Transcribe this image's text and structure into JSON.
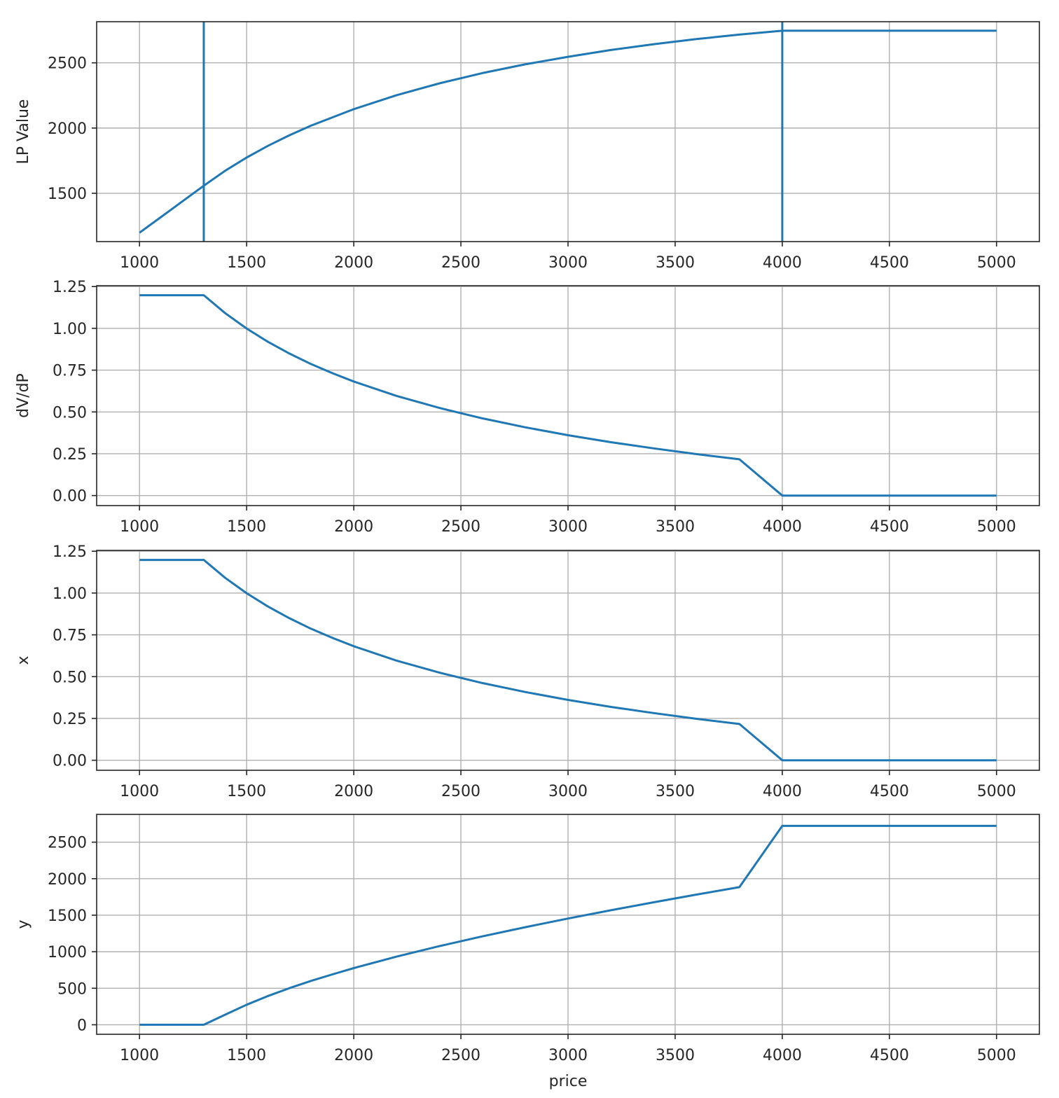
{
  "chart_data": [
    {
      "type": "line",
      "title": "",
      "xlabel": "",
      "ylabel": "LP Value",
      "xlim": [
        800,
        5200
      ],
      "ylim": [
        1130,
        2815
      ],
      "x_ticks": [
        1000,
        1500,
        2000,
        2500,
        3000,
        3500,
        4000,
        4500,
        5000
      ],
      "y_ticks": [
        1500,
        2000,
        2500
      ],
      "grid": true,
      "vlines": [
        1300,
        4000
      ],
      "series": [
        {
          "color": "#1f77b4",
          "x": [
            1000,
            1100,
            1200,
            1300,
            1400,
            1500,
            1600,
            1700,
            1800,
            2000,
            2200,
            2400,
            2600,
            2800,
            3000,
            3200,
            3400,
            3600,
            3800,
            4000,
            4500,
            5000
          ],
          "y": [
            1198,
            1318,
            1438,
            1558,
            1673,
            1774,
            1864,
            1945,
            2018,
            2145,
            2252,
            2343,
            2421,
            2488,
            2546,
            2598,
            2643,
            2682,
            2716,
            2746,
            2746,
            2746
          ]
        }
      ]
    },
    {
      "type": "line",
      "title": "",
      "xlabel": "",
      "ylabel": "dV/dP",
      "xlim": [
        800,
        5200
      ],
      "ylim": [
        -0.06,
        1.255
      ],
      "x_ticks": [
        1000,
        1500,
        2000,
        2500,
        3000,
        3500,
        4000,
        4500,
        5000
      ],
      "y_ticks": [
        "0.00",
        "0.25",
        "0.50",
        "0.75",
        "1.00",
        "1.25"
      ],
      "grid": true,
      "series": [
        {
          "color": "#1f77b4",
          "x": [
            1000,
            1300,
            1400,
            1500,
            1600,
            1700,
            1800,
            1900,
            2000,
            2200,
            2400,
            2600,
            2800,
            3000,
            3200,
            3400,
            3600,
            3800,
            4000,
            4500,
            5000
          ],
          "y": [
            1.198,
            1.198,
            1.091,
            0.999,
            0.919,
            0.849,
            0.787,
            0.732,
            0.682,
            0.596,
            0.524,
            0.462,
            0.408,
            0.361,
            0.319,
            0.282,
            0.248,
            0.217,
            0.0,
            0.0,
            0.0
          ]
        }
      ]
    },
    {
      "type": "line",
      "title": "",
      "xlabel": "",
      "ylabel": "x",
      "xlim": [
        800,
        5200
      ],
      "ylim": [
        -0.06,
        1.255
      ],
      "x_ticks": [
        1000,
        1500,
        2000,
        2500,
        3000,
        3500,
        4000,
        4500,
        5000
      ],
      "y_ticks": [
        "0.00",
        "0.25",
        "0.50",
        "0.75",
        "1.00",
        "1.25"
      ],
      "grid": true,
      "series": [
        {
          "color": "#1f77b4",
          "x": [
            1000,
            1300,
            1400,
            1500,
            1600,
            1700,
            1800,
            1900,
            2000,
            2200,
            2400,
            2600,
            2800,
            3000,
            3200,
            3400,
            3600,
            3800,
            4000,
            4500,
            5000
          ],
          "y": [
            1.198,
            1.198,
            1.091,
            0.999,
            0.919,
            0.849,
            0.787,
            0.732,
            0.682,
            0.596,
            0.524,
            0.462,
            0.408,
            0.361,
            0.319,
            0.282,
            0.248,
            0.217,
            0.0,
            0.0,
            0.0
          ]
        }
      ]
    },
    {
      "type": "line",
      "title": "",
      "xlabel": "price",
      "ylabel": "y",
      "xlim": [
        800,
        5200
      ],
      "ylim": [
        -130,
        2880
      ],
      "x_ticks": [
        1000,
        1500,
        2000,
        2500,
        3000,
        3500,
        4000,
        4500,
        5000
      ],
      "y_ticks": [
        0,
        500,
        1000,
        1500,
        2000,
        2500
      ],
      "grid": true,
      "series": [
        {
          "color": "#1f77b4",
          "x": [
            1000,
            1300,
            1400,
            1500,
            1600,
            1700,
            1800,
            1900,
            2000,
            2200,
            2400,
            2600,
            2800,
            3000,
            3200,
            3400,
            3600,
            3800,
            4000,
            4500,
            5000
          ],
          "y": [
            0,
            0,
            138,
            275,
            394,
            502,
            600,
            690,
            776,
            933,
            1077,
            1210,
            1336,
            1455,
            1568,
            1677,
            1782,
            1884,
            2723,
            2723,
            2723
          ]
        }
      ]
    }
  ]
}
